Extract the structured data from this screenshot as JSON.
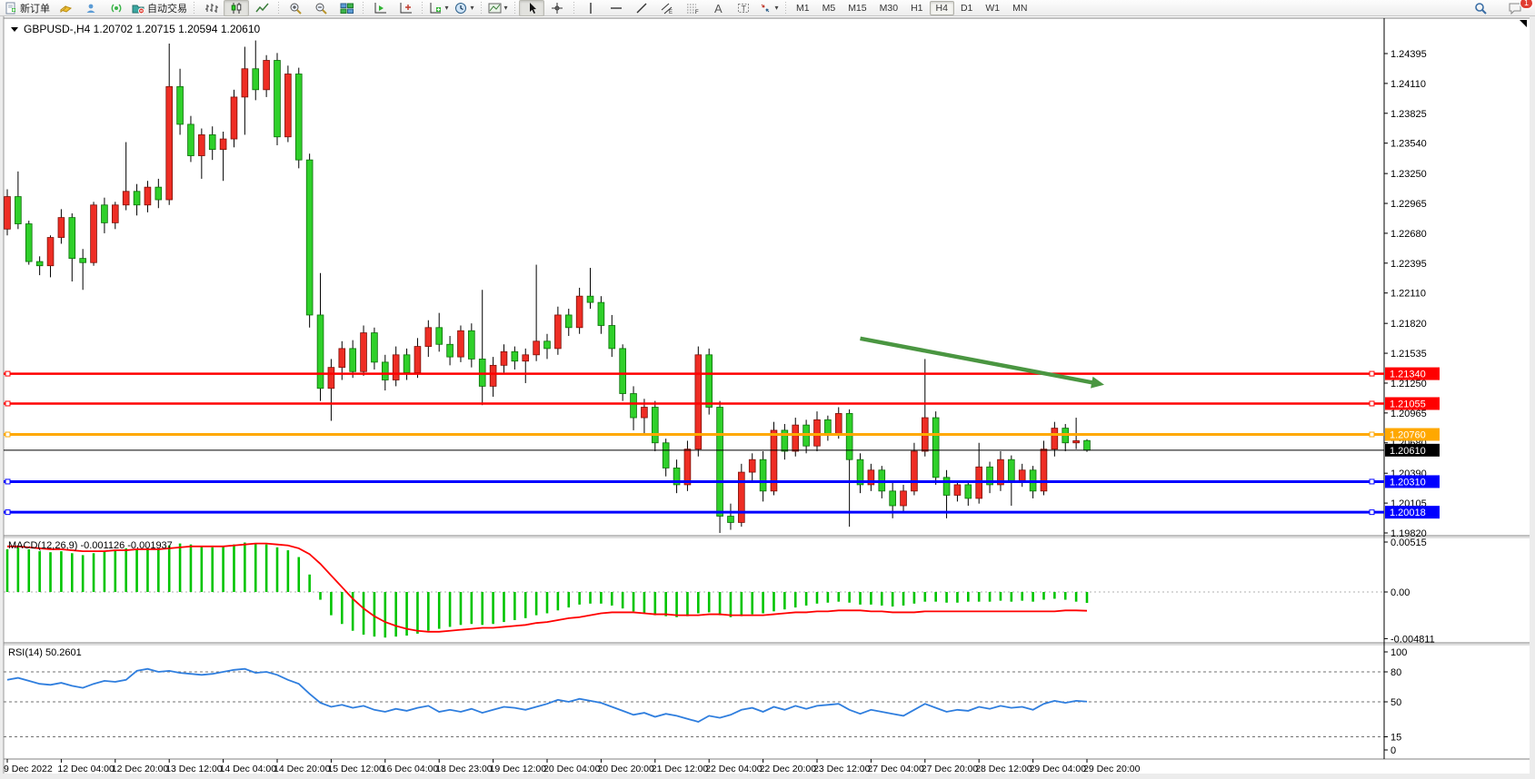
{
  "app": {
    "platform_language": "zh-CN"
  },
  "toolbar": {
    "new_order_label": "新订单",
    "autotrading_label": "自动交易",
    "timeframes": [
      "M1",
      "M5",
      "M15",
      "M30",
      "H1",
      "H4",
      "D1",
      "W1",
      "MN"
    ],
    "active_timeframe": "H4",
    "notification_badge": "1",
    "buttons": [
      {
        "name": "new-order-button",
        "icon": "new-order-icon",
        "label": "新订单"
      },
      {
        "name": "market-watch-button",
        "icon": "market-watch-icon"
      },
      {
        "name": "community-button",
        "icon": "community-icon"
      },
      {
        "name": "signals-button",
        "icon": "signals-icon"
      },
      {
        "name": "autotrading-button",
        "icon": "autotrading-icon",
        "label": "自动交易"
      },
      {
        "sep": true
      },
      {
        "name": "bar-chart-button",
        "icon": "bar-chart-icon"
      },
      {
        "name": "candlestick-button",
        "icon": "candlestick-icon",
        "pressed": true
      },
      {
        "name": "line-chart-button",
        "icon": "line-chart-icon"
      },
      {
        "sep": true
      },
      {
        "name": "zoom-in-button",
        "icon": "zoom-in-icon"
      },
      {
        "name": "zoom-out-button",
        "icon": "zoom-out-icon"
      },
      {
        "name": "tile-windows-button",
        "icon": "tile-windows-icon"
      },
      {
        "sep": true
      },
      {
        "name": "auto-scroll-button",
        "icon": "auto-scroll-icon"
      },
      {
        "name": "chart-shift-button",
        "icon": "chart-shift-icon"
      },
      {
        "sep": true
      },
      {
        "name": "indicators-button",
        "icon": "indicators-icon",
        "caret": true
      },
      {
        "name": "periods-button",
        "icon": "periods-icon",
        "caret": true
      },
      {
        "sep": true
      },
      {
        "name": "templates-button",
        "icon": "templates-icon",
        "caret": true
      },
      {
        "sep": true
      },
      {
        "name": "cursor-button",
        "icon": "cursor-icon",
        "pressed": true
      },
      {
        "name": "crosshair-button",
        "icon": "crosshair-icon"
      },
      {
        "sep": true
      },
      {
        "name": "vertical-line-button",
        "icon": "vertical-line-icon"
      },
      {
        "name": "horizontal-line-button",
        "icon": "horizontal-line-icon"
      },
      {
        "name": "trendline-button",
        "icon": "trendline-icon"
      },
      {
        "name": "equidistant-channel-button",
        "icon": "equidistant-channel-icon"
      },
      {
        "name": "fibonacci-button",
        "icon": "fibonacci-icon"
      },
      {
        "name": "text-button",
        "icon": "text-icon"
      },
      {
        "name": "text-label-button",
        "icon": "text-label-icon"
      },
      {
        "name": "arrows-button",
        "icon": "arrows-icon",
        "caret": true
      },
      {
        "sep": true
      }
    ]
  },
  "chart_header": {
    "symbol_period": "GBPUSD-,H4",
    "open": "1.20702",
    "high": "1.20715",
    "low": "1.20594",
    "close": "1.20610"
  },
  "chart_data": {
    "type": "candlestick",
    "symbol": "GBPUSD-",
    "timeframe": "H4",
    "colors": {
      "up_body": "#ee2d24",
      "down_body": "#2fd02a",
      "wick": "#000000",
      "macd_histogram": "#00c400",
      "macd_signal": "#ff0000",
      "rsi_line": "#2f7ede",
      "hline_red": "#ff0000",
      "hline_orange": "#ffa800",
      "hline_blue": "#0000ff",
      "bid_line": "#000000",
      "arrow_green": "#4a9641"
    },
    "price_axis_ticks": [
      "1.24395",
      "1.24110",
      "1.23825",
      "1.23540",
      "1.23250",
      "1.22965",
      "1.22680",
      "1.22395",
      "1.22110",
      "1.21820",
      "1.21535",
      "1.21250",
      "1.20965",
      "1.20680",
      "1.20390",
      "1.20105",
      "1.19820"
    ],
    "price_anchor_top": 1.24395,
    "price_anchor_bottom": 1.1982,
    "horizontal_lines": [
      {
        "price": 1.2134,
        "label": "1.21340",
        "color": "#ff0000",
        "width": 2.5
      },
      {
        "price": 1.21055,
        "label": "1.21055",
        "color": "#ff0000",
        "width": 2.5
      },
      {
        "price": 1.2076,
        "label": "1.20760",
        "color": "#ffa800",
        "width": 3
      },
      {
        "price": 1.2031,
        "label": "1.20310",
        "color": "#0000ff",
        "width": 3
      },
      {
        "price": 1.20018,
        "label": "1.20018",
        "color": "#0000ff",
        "width": 3
      }
    ],
    "bid_price": {
      "value": 1.2061,
      "label": "1.20610"
    },
    "trend_arrow": {
      "from_bar": 79,
      "from_price": 1.21676,
      "to_bar": 101.6,
      "to_price": 1.21234
    },
    "x_labels": [
      "9 Dec 2022",
      "12 Dec 04:00",
      "12 Dec 20:00",
      "13 Dec 12:00",
      "14 Dec 04:00",
      "14 Dec 20:00",
      "15 Dec 12:00",
      "16 Dec 04:00",
      "18 Dec 23:00",
      "19 Dec 12:00",
      "20 Dec 04:00",
      "20 Dec 20:00",
      "21 Dec 12:00",
      "22 Dec 04:00",
      "22 Dec 20:00",
      "23 Dec 12:00",
      "27 Dec 04:00",
      "27 Dec 20:00",
      "28 Dec 12:00",
      "29 Dec 04:00",
      "29 Dec 20:00"
    ],
    "candles": [
      [
        1.2272,
        1.231,
        1.2266,
        1.2303
      ],
      [
        1.2303,
        1.2327,
        1.2272,
        1.2277
      ],
      [
        1.2277,
        1.228,
        1.2238,
        1.2241
      ],
      [
        1.2241,
        1.2246,
        1.2228,
        1.2237
      ],
      [
        1.2237,
        1.2266,
        1.2226,
        1.2264
      ],
      [
        1.2264,
        1.2291,
        1.2258,
        1.2283
      ],
      [
        1.2283,
        1.2287,
        1.2222,
        1.2244
      ],
      [
        1.2244,
        1.2253,
        1.2214,
        1.224
      ],
      [
        1.224,
        1.2298,
        1.2237,
        1.2295
      ],
      [
        1.2295,
        1.2302,
        1.2268,
        1.2278
      ],
      [
        1.2278,
        1.2298,
        1.2272,
        1.2295
      ],
      [
        1.2295,
        1.2355,
        1.229,
        1.2308
      ],
      [
        1.2308,
        1.2315,
        1.2285,
        1.2295
      ],
      [
        1.2295,
        1.2318,
        1.2288,
        1.2312
      ],
      [
        1.2312,
        1.232,
        1.2292,
        1.23
      ],
      [
        1.23,
        1.2449,
        1.2295,
        1.2408
      ],
      [
        1.2408,
        1.2425,
        1.2362,
        1.2372
      ],
      [
        1.2372,
        1.238,
        1.2336,
        1.2342
      ],
      [
        1.2342,
        1.2368,
        1.232,
        1.2362
      ],
      [
        1.2362,
        1.237,
        1.2338,
        1.2348
      ],
      [
        1.2348,
        1.2365,
        1.2318,
        1.2358
      ],
      [
        1.2358,
        1.2405,
        1.235,
        1.2398
      ],
      [
        1.2398,
        1.2446,
        1.2362,
        1.2425
      ],
      [
        1.2425,
        1.2452,
        1.2395,
        1.2405
      ],
      [
        1.2405,
        1.2438,
        1.2398,
        1.2433
      ],
      [
        1.2433,
        1.244,
        1.2352,
        1.236
      ],
      [
        1.236,
        1.2428,
        1.2355,
        1.242
      ],
      [
        1.242,
        1.2426,
        1.233,
        1.2338
      ],
      [
        1.2338,
        1.2344,
        1.2178,
        1.219
      ],
      [
        1.219,
        1.223,
        1.2108,
        1.212
      ],
      [
        1.212,
        1.2148,
        1.2089,
        1.214
      ],
      [
        1.214,
        1.2165,
        1.2128,
        1.2158
      ],
      [
        1.2158,
        1.2166,
        1.213,
        1.2136
      ],
      [
        1.2136,
        1.218,
        1.2132,
        1.2173
      ],
      [
        1.2173,
        1.2178,
        1.2138,
        1.2145
      ],
      [
        1.2145,
        1.2152,
        1.2118,
        1.2128
      ],
      [
        1.2128,
        1.216,
        1.2122,
        1.2152
      ],
      [
        1.2152,
        1.2158,
        1.2128,
        1.2135
      ],
      [
        1.2135,
        1.2168,
        1.213,
        1.216
      ],
      [
        1.216,
        1.2185,
        1.215,
        1.2178
      ],
      [
        1.2178,
        1.2192,
        1.2155,
        1.2162
      ],
      [
        1.2162,
        1.217,
        1.2142,
        1.215
      ],
      [
        1.215,
        1.218,
        1.2145,
        1.2175
      ],
      [
        1.2175,
        1.2182,
        1.214,
        1.2148
      ],
      [
        1.2148,
        1.2214,
        1.2104,
        1.2122
      ],
      [
        1.2122,
        1.215,
        1.2112,
        1.2142
      ],
      [
        1.2142,
        1.2162,
        1.2135,
        1.2155
      ],
      [
        1.2155,
        1.216,
        1.2138,
        1.2146
      ],
      [
        1.2146,
        1.2158,
        1.2125,
        1.2152
      ],
      [
        1.2152,
        1.2238,
        1.2146,
        1.2165
      ],
      [
        1.2165,
        1.2172,
        1.2148,
        1.2158
      ],
      [
        1.2158,
        1.2198,
        1.2152,
        1.219
      ],
      [
        1.219,
        1.2196,
        1.217,
        1.2178
      ],
      [
        1.2178,
        1.2216,
        1.2172,
        1.2208
      ],
      [
        1.2208,
        1.2235,
        1.2196,
        1.2202
      ],
      [
        1.2202,
        1.2208,
        1.2172,
        1.218
      ],
      [
        1.218,
        1.219,
        1.215,
        1.2158
      ],
      [
        1.2158,
        1.2162,
        1.2108,
        1.2115
      ],
      [
        1.2115,
        1.2122,
        1.208,
        1.2092
      ],
      [
        1.2092,
        1.211,
        1.2075,
        1.2102
      ],
      [
        1.2102,
        1.2108,
        1.206,
        1.2068
      ],
      [
        1.2068,
        1.2072,
        1.2036,
        1.2044
      ],
      [
        1.2044,
        1.2052,
        1.202,
        1.2028
      ],
      [
        1.2028,
        1.207,
        1.2022,
        1.2062
      ],
      [
        1.2062,
        1.216,
        1.2055,
        1.2152
      ],
      [
        1.2152,
        1.2158,
        1.2095,
        1.2102
      ],
      [
        1.2102,
        1.2108,
        1.1982,
        1.1998
      ],
      [
        1.1998,
        1.201,
        1.1985,
        1.1992
      ],
      [
        1.1992,
        1.2048,
        1.1988,
        1.204
      ],
      [
        1.204,
        1.2058,
        1.2032,
        1.2052
      ],
      [
        1.2052,
        1.206,
        1.2012,
        1.2022
      ],
      [
        1.2022,
        1.2088,
        1.2018,
        1.208
      ],
      [
        1.208,
        1.2086,
        1.2052,
        1.206
      ],
      [
        1.206,
        1.2092,
        1.2055,
        1.2085
      ],
      [
        1.2085,
        1.209,
        1.2058,
        1.2065
      ],
      [
        1.2065,
        1.2098,
        1.206,
        1.209
      ],
      [
        1.209,
        1.2094,
        1.207,
        1.2076
      ],
      [
        1.2076,
        1.2102,
        1.2072,
        1.2096
      ],
      [
        1.2096,
        1.21,
        1.1988,
        1.2052
      ],
      [
        1.2052,
        1.2058,
        1.202,
        1.2028
      ],
      [
        1.2028,
        1.2048,
        1.2022,
        1.2042
      ],
      [
        1.2042,
        1.2046,
        1.2015,
        1.2022
      ],
      [
        1.2022,
        1.203,
        1.1996,
        1.2008
      ],
      [
        1.2008,
        1.2028,
        1.2002,
        1.2022
      ],
      [
        1.2022,
        1.2068,
        1.2018,
        1.206
      ],
      [
        1.206,
        1.2148,
        1.2055,
        1.2092
      ],
      [
        1.2092,
        1.2098,
        1.2028,
        1.2035
      ],
      [
        1.2035,
        1.2042,
        1.1996,
        1.2018
      ],
      [
        1.2018,
        1.2032,
        1.2012,
        1.2028
      ],
      [
        1.2028,
        1.2032,
        1.2008,
        1.2015
      ],
      [
        1.2015,
        1.2068,
        1.201,
        1.2045
      ],
      [
        1.2045,
        1.205,
        1.202,
        1.2028
      ],
      [
        1.2028,
        1.206,
        1.2022,
        1.2052
      ],
      [
        1.2052,
        1.2056,
        1.2008,
        1.2032
      ],
      [
        1.2032,
        1.2048,
        1.2026,
        1.2042
      ],
      [
        1.2042,
        1.2046,
        1.2015,
        1.2022
      ],
      [
        1.2022,
        1.207,
        1.2018,
        1.2062
      ],
      [
        1.2062,
        1.2088,
        1.2055,
        1.2082
      ],
      [
        1.2082,
        1.2086,
        1.206,
        1.2068
      ],
      [
        1.2068,
        1.2092,
        1.2062,
        1.207
      ],
      [
        1.20702,
        1.20715,
        1.20594,
        1.2061
      ]
    ],
    "macd": {
      "label": "MACD(12,26,9)",
      "main_value": "-0.001126",
      "signal_value": "-0.001937",
      "axis_labels": [
        "0.00515",
        "0.00",
        "-0.004811"
      ],
      "axis_max": 0.00515,
      "axis_min": -0.004811,
      "histogram": [
        0.0044,
        0.0046,
        0.0044,
        0.0042,
        0.0041,
        0.0042,
        0.004,
        0.0038,
        0.004,
        0.0042,
        0.0043,
        0.0045,
        0.0044,
        0.0045,
        0.0044,
        0.0048,
        0.005,
        0.0049,
        0.0047,
        0.0046,
        0.0047,
        0.0049,
        0.0051,
        0.005,
        0.0049,
        0.0046,
        0.0043,
        0.0036,
        0.0018,
        -0.0008,
        -0.0024,
        -0.0033,
        -0.004,
        -0.0044,
        -0.0046,
        -0.0047,
        -0.0046,
        -0.0045,
        -0.0043,
        -0.004,
        -0.0038,
        -0.0036,
        -0.0034,
        -0.0033,
        -0.0034,
        -0.0033,
        -0.0031,
        -0.0029,
        -0.0027,
        -0.0024,
        -0.0022,
        -0.0019,
        -0.0016,
        -0.0013,
        -0.0012,
        -0.0012,
        -0.0014,
        -0.0017,
        -0.002,
        -0.0022,
        -0.0024,
        -0.0025,
        -0.0026,
        -0.0025,
        -0.0022,
        -0.0021,
        -0.0024,
        -0.0026,
        -0.0025,
        -0.0023,
        -0.0022,
        -0.002,
        -0.0018,
        -0.0016,
        -0.0014,
        -0.0012,
        -0.0011,
        -0.001,
        -0.0011,
        -0.0013,
        -0.0013,
        -0.0014,
        -0.0015,
        -0.0014,
        -0.0012,
        -0.001,
        -0.001,
        -0.0011,
        -0.0011,
        -0.001,
        -0.001,
        -0.001,
        -0.0009,
        -0.001,
        -0.0009,
        -0.001,
        -0.0008,
        -0.0007,
        -0.0008,
        -0.001,
        -0.001126
      ],
      "signal": [
        0.0047,
        0.0047,
        0.0046,
        0.0045,
        0.0044,
        0.0044,
        0.0043,
        0.0042,
        0.0042,
        0.0042,
        0.0043,
        0.0043,
        0.0044,
        0.0044,
        0.0044,
        0.0045,
        0.0046,
        0.0047,
        0.0047,
        0.0047,
        0.0047,
        0.0048,
        0.0049,
        0.005,
        0.005,
        0.0049,
        0.0048,
        0.0045,
        0.0039,
        0.0029,
        0.0017,
        0.0005,
        -0.0007,
        -0.0017,
        -0.0025,
        -0.0031,
        -0.0035,
        -0.0038,
        -0.004,
        -0.0041,
        -0.0041,
        -0.004,
        -0.0039,
        -0.0038,
        -0.0037,
        -0.0037,
        -0.0036,
        -0.0035,
        -0.0034,
        -0.0032,
        -0.0031,
        -0.0029,
        -0.0027,
        -0.0026,
        -0.0024,
        -0.0022,
        -0.0021,
        -0.0021,
        -0.0021,
        -0.0022,
        -0.0023,
        -0.0023,
        -0.0024,
        -0.0024,
        -0.0024,
        -0.0023,
        -0.0023,
        -0.0024,
        -0.0024,
        -0.0024,
        -0.0024,
        -0.0023,
        -0.0022,
        -0.0021,
        -0.0021,
        -0.002,
        -0.002,
        -0.0019,
        -0.0019,
        -0.0019,
        -0.002,
        -0.002,
        -0.0021,
        -0.0021,
        -0.0021,
        -0.002,
        -0.002,
        -0.002,
        -0.002,
        -0.002,
        -0.002,
        -0.002,
        -0.002,
        -0.002,
        -0.002,
        -0.002,
        -0.002,
        -0.002,
        -0.0019,
        -0.0019,
        -0.001937
      ]
    },
    "rsi": {
      "label": "RSI(14)",
      "value": "50.2601",
      "axis_labels": [
        "100",
        "80",
        "50",
        "15",
        "0"
      ],
      "levels": [
        80,
        50,
        15
      ],
      "series": [
        72,
        74,
        71,
        68,
        67,
        69,
        66,
        64,
        68,
        71,
        70,
        72,
        81,
        83,
        80,
        81,
        79,
        78,
        77,
        78,
        80,
        82,
        83,
        79,
        80,
        77,
        72,
        68,
        58,
        49,
        45,
        47,
        44,
        46,
        42,
        40,
        43,
        41,
        44,
        46,
        40,
        42,
        40,
        43,
        39,
        42,
        45,
        44,
        42,
        45,
        48,
        52,
        50,
        53,
        51,
        49,
        45,
        41,
        37,
        39,
        35,
        38,
        36,
        33,
        30,
        36,
        34,
        37,
        42,
        44,
        40,
        45,
        42,
        46,
        43,
        46,
        47,
        48,
        42,
        38,
        42,
        40,
        38,
        36,
        42,
        48,
        44,
        40,
        42,
        41,
        45,
        43,
        46,
        44,
        45,
        42,
        48,
        51,
        49,
        51,
        50.2601
      ]
    }
  }
}
